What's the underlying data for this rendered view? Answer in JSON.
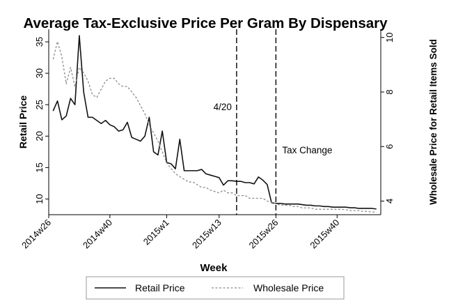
{
  "chart_data": {
    "type": "line",
    "title": "Average Tax-Exclusive Price Per Gram By Dispensary",
    "xlabel": "Week",
    "ylabel": "Retail Price",
    "y2label": "Wholesale Price for Retail Items Sold",
    "x_tick_labels": [
      "2014w26",
      "2014w40",
      "2015w1",
      "2015w13",
      "2015w26",
      "2015w40"
    ],
    "x_tick_values": [
      0,
      14,
      27,
      39,
      52,
      66
    ],
    "xlim": [
      0,
      76
    ],
    "ylim": [
      7.5,
      37
    ],
    "y_ticks": [
      10,
      15,
      20,
      25,
      30,
      35
    ],
    "y2lim": [
      3.5,
      10.3
    ],
    "y2_ticks": [
      4,
      6,
      8,
      10
    ],
    "grid": false,
    "legend_position": "bottom",
    "vlines": [
      {
        "x": 43,
        "label": "4/20"
      },
      {
        "x": 52,
        "label": "Tax Change"
      }
    ],
    "series": [
      {
        "name": "Retail Price",
        "axis": "left",
        "style": "solid",
        "x": [
          1,
          2,
          3,
          4,
          5,
          6,
          7,
          8,
          9,
          10,
          11,
          12,
          13,
          14,
          15,
          16,
          17,
          18,
          19,
          20,
          21,
          22,
          23,
          24,
          25,
          26,
          27,
          28,
          29,
          30,
          31,
          32,
          33,
          34,
          35,
          36,
          37,
          38,
          39,
          40,
          41,
          42,
          43,
          44,
          45,
          46,
          47,
          48,
          49,
          50,
          51,
          52,
          53,
          54,
          55,
          56,
          57,
          58,
          59,
          60,
          61,
          62,
          63,
          64,
          65,
          66,
          67,
          68,
          69,
          70,
          71,
          72,
          73,
          74,
          75
        ],
        "values": [
          24.0,
          25.6,
          22.6,
          23.2,
          26.0,
          25.0,
          36.0,
          27.0,
          23.0,
          23.0,
          22.5,
          22.0,
          22.5,
          21.8,
          21.5,
          20.8,
          21.0,
          22.2,
          19.8,
          19.5,
          19.2,
          20.0,
          23.0,
          17.5,
          17.0,
          20.8,
          15.8,
          15.6,
          14.8,
          19.5,
          14.5,
          14.5,
          14.5,
          14.5,
          14.7,
          14.0,
          13.8,
          13.6,
          13.4,
          12.2,
          12.9,
          12.9,
          12.8,
          12.8,
          12.6,
          12.6,
          12.4,
          13.5,
          13.0,
          12.3,
          9.4,
          9.3,
          9.3,
          9.2,
          9.2,
          9.2,
          9.2,
          9.1,
          9.0,
          9.0,
          8.9,
          8.9,
          8.8,
          8.8,
          8.7,
          8.7,
          8.7,
          8.7,
          8.6,
          8.6,
          8.5,
          8.5,
          8.5,
          8.5,
          8.4
        ]
      },
      {
        "name": "Wholesale Price",
        "axis": "right",
        "style": "dashed",
        "x": [
          1,
          2,
          3,
          4,
          5,
          6,
          7,
          8,
          9,
          10,
          11,
          12,
          13,
          14,
          15,
          16,
          17,
          18,
          19,
          20,
          21,
          22,
          23,
          24,
          25,
          26,
          27,
          28,
          29,
          30,
          31,
          32,
          33,
          34,
          35,
          36,
          37,
          38,
          39,
          40,
          41,
          42,
          43,
          44,
          45,
          46,
          47,
          48,
          49,
          50,
          51,
          52,
          53,
          54,
          55,
          56,
          57,
          58,
          59,
          60,
          61,
          62,
          63,
          64,
          65,
          66,
          67,
          68,
          69,
          70,
          71,
          72,
          73,
          74,
          75
        ],
        "values": [
          9.2,
          9.85,
          9.3,
          8.3,
          8.9,
          8.2,
          8.9,
          8.7,
          8.4,
          7.9,
          7.8,
          8.1,
          8.4,
          8.5,
          8.5,
          8.3,
          8.2,
          8.2,
          8.0,
          7.8,
          7.5,
          7.2,
          6.8,
          6.5,
          6.2,
          5.8,
          5.4,
          5.2,
          5.0,
          4.9,
          4.8,
          4.7,
          4.7,
          4.6,
          4.5,
          4.5,
          4.4,
          4.35,
          4.3,
          4.4,
          4.3,
          4.3,
          4.2,
          4.2,
          4.2,
          4.1,
          4.1,
          4.1,
          4.1,
          4.0,
          3.95,
          3.9,
          3.85,
          3.85,
          3.85,
          3.8,
          3.8,
          3.75,
          3.75,
          3.75,
          3.7,
          3.7,
          3.7,
          3.7,
          3.7,
          3.7,
          3.7,
          3.68,
          3.65,
          3.65,
          3.65,
          3.62,
          3.62,
          3.6,
          3.6
        ]
      }
    ]
  }
}
